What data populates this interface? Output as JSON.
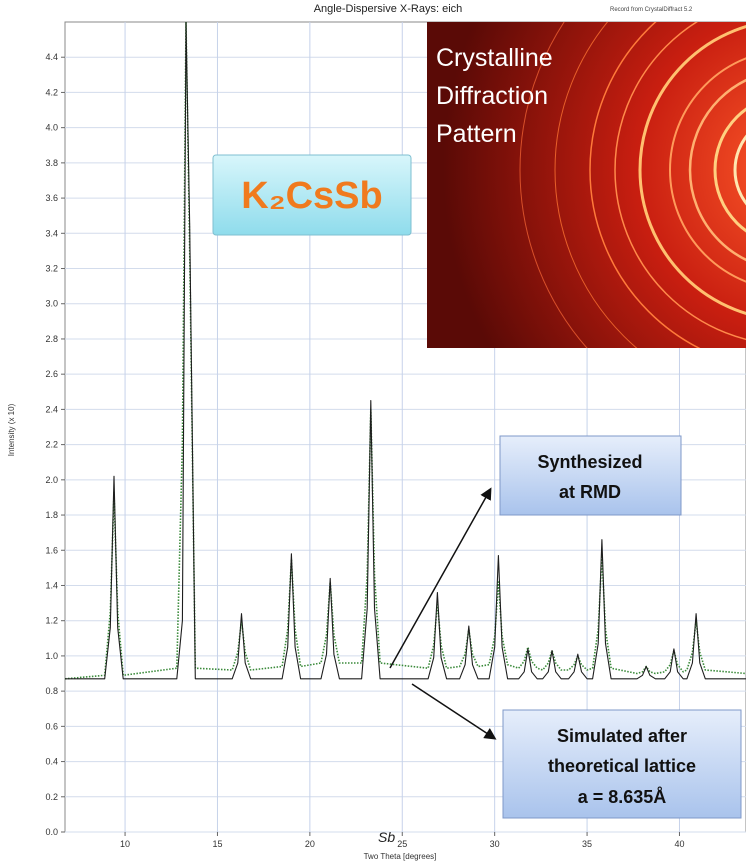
{
  "chart_data": {
    "type": "line",
    "title": "Angle-Dispersive X-Rays: eich",
    "source_note": "Record from CrystalDiffract 5.2",
    "x_label": "Two Theta [degrees]",
    "y_label": "Intensity (x 10)",
    "x_annotation": "Sb",
    "compound_label": "K₂CsSb",
    "inset_text": [
      "Crystalline",
      "Diffraction",
      "Pattern"
    ],
    "synthesized_label": [
      "Synthesized",
      "at RMD"
    ],
    "simulated_label": [
      "Simulated after",
      "theoretical lattice",
      "a = 8.635Å"
    ],
    "grid": true,
    "xlim": [
      6.75,
      43.6
    ],
    "ylim": [
      0,
      4.6
    ],
    "xticks": [
      10,
      15,
      20,
      25,
      30,
      35,
      40
    ],
    "yticks": [
      {
        "value": 0,
        "label": "0.0"
      },
      0.2,
      0.4,
      0.6,
      0.8,
      {
        "value": 1,
        "label": "1.0"
      },
      1.2,
      1.4,
      1.6,
      1.8,
      {
        "value": 2,
        "label": "2.0"
      },
      2.2,
      2.4,
      2.6,
      2.8,
      {
        "value": 3,
        "label": "3.0"
      },
      3.2,
      3.4,
      3.6,
      3.8,
      {
        "value": 4,
        "label": "4.0"
      },
      4.2,
      4.4
    ],
    "x": [
      6.75,
      8.9,
      9.2,
      9.4,
      9.6,
      9.9,
      12.8,
      13.1,
      13.3,
      13.5,
      13.8,
      15.8,
      16.1,
      16.3,
      16.5,
      16.8,
      18.5,
      18.8,
      19.0,
      19.2,
      19.5,
      20.6,
      20.9,
      21.1,
      21.3,
      21.6,
      22.8,
      23.1,
      23.3,
      23.5,
      23.8,
      26.4,
      26.7,
      26.9,
      27.1,
      27.4,
      28.1,
      28.4,
      28.6,
      28.8,
      29.1,
      29.7,
      30.0,
      30.2,
      30.4,
      30.7,
      31.3,
      31.6,
      31.8,
      32.0,
      32.3,
      32.6,
      32.9,
      33.1,
      33.3,
      33.6,
      34.0,
      34.3,
      34.5,
      34.7,
      35.0,
      35.3,
      35.6,
      35.8,
      36.0,
      36.3,
      37.7,
      38.0,
      38.2,
      38.4,
      38.7,
      39.2,
      39.5,
      39.7,
      39.9,
      40.2,
      40.4,
      40.7,
      40.9,
      41.1,
      41.4,
      43.6
    ],
    "series": [
      {
        "color": "#1e1e1e",
        "dash": false,
        "values": [
          0.87,
          0.87,
          1.16,
          2.02,
          1.16,
          0.87,
          0.87,
          1.2,
          4.6,
          3.44,
          0.87,
          0.87,
          0.96,
          1.24,
          0.96,
          0.87,
          0.87,
          1.05,
          1.58,
          1.05,
          0.87,
          0.87,
          1.01,
          1.44,
          1.01,
          0.87,
          0.87,
          1.27,
          2.45,
          1.27,
          0.87,
          0.87,
          0.99,
          1.36,
          0.99,
          0.87,
          0.87,
          0.95,
          1.17,
          0.95,
          0.87,
          0.87,
          1.05,
          1.57,
          1.05,
          0.87,
          0.87,
          0.91,
          1.04,
          0.91,
          0.87,
          0.87,
          0.91,
          1.03,
          0.91,
          0.87,
          0.87,
          0.91,
          1.01,
          0.91,
          0.87,
          0.87,
          1.07,
          1.66,
          1.07,
          0.87,
          0.87,
          0.89,
          0.94,
          0.89,
          0.87,
          0.87,
          0.91,
          1.04,
          0.91,
          0.87,
          0.87,
          0.96,
          1.24,
          0.96,
          0.87,
          0.87
        ]
      },
      {
        "color": "#3a8a3a",
        "dash": true,
        "values": [
          0.87,
          0.89,
          1.25,
          1.93,
          1.25,
          0.89,
          0.93,
          2.21,
          4.6,
          3.3,
          0.93,
          0.92,
          1.02,
          1.2,
          1.02,
          0.92,
          0.94,
          1.15,
          1.55,
          1.15,
          0.94,
          0.96,
          1.12,
          1.42,
          1.12,
          0.96,
          0.96,
          1.46,
          2.4,
          1.46,
          0.96,
          0.93,
          1.06,
          1.3,
          1.06,
          0.93,
          0.94,
          1.01,
          1.15,
          1.01,
          0.94,
          0.95,
          1.11,
          1.42,
          1.11,
          0.95,
          0.93,
          0.97,
          1.05,
          0.97,
          0.93,
          0.92,
          0.96,
          1.03,
          0.96,
          0.92,
          0.92,
          0.95,
          1.0,
          0.95,
          0.92,
          0.93,
          1.15,
          1.57,
          1.15,
          0.93,
          0.9,
          0.91,
          0.94,
          0.91,
          0.9,
          0.91,
          0.95,
          1.03,
          0.95,
          0.91,
          0.92,
          1.02,
          1.2,
          1.02,
          0.92,
          0.9
        ]
      }
    ]
  }
}
